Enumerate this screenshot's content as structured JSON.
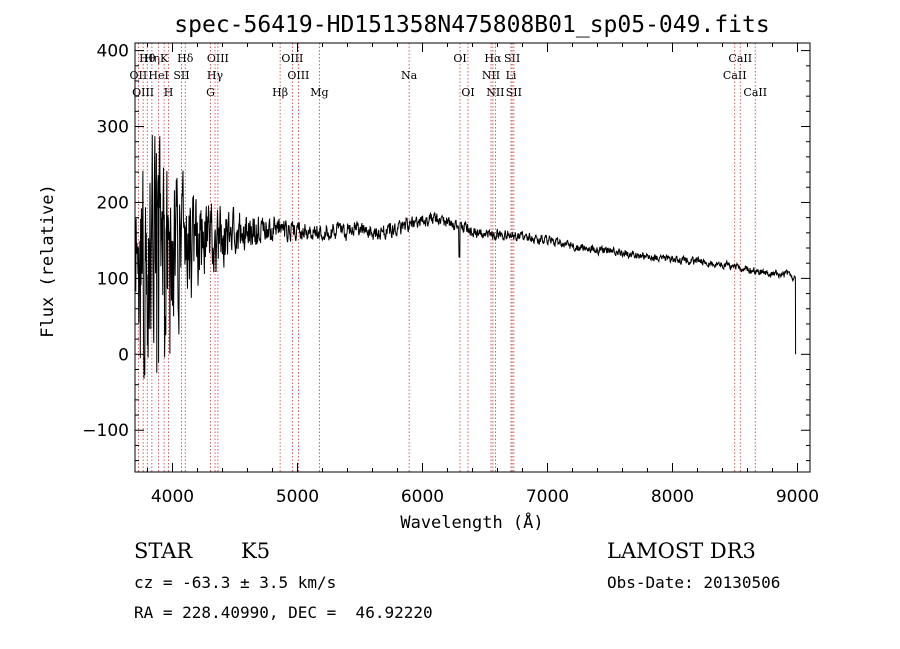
{
  "chart_data": {
    "type": "line",
    "title": "spec-56419-HD151358N475808B01_sp05-049.fits",
    "xlabel": "Wavelength (Å)",
    "ylabel": "Flux (relative)",
    "xlim": [
      3700,
      9100
    ],
    "ylim": [
      -155,
      410
    ],
    "xticks": [
      4000,
      5000,
      6000,
      7000,
      8000,
      9000
    ],
    "yticks": [
      -100,
      0,
      100,
      200,
      300,
      400
    ],
    "series": [
      {
        "name": "spectrum",
        "anchors_x": [
          3700,
          3760,
          3850,
          3950,
          4050,
          4150,
          4300,
          4500,
          4700,
          4900,
          5100,
          5300,
          5500,
          5700,
          5850,
          6000,
          6100,
          6200,
          6300,
          6400,
          6500,
          6600,
          6700,
          6800,
          7000,
          7200,
          7400,
          7600,
          7800,
          8000,
          8200,
          8400,
          8500,
          8600,
          8700,
          8800,
          8950,
          8980
        ],
        "anchors_y": [
          50,
          130,
          160,
          150,
          135,
          140,
          150,
          160,
          165,
          165,
          160,
          162,
          165,
          160,
          168,
          178,
          178,
          172,
          168,
          162,
          160,
          158,
          157,
          155,
          150,
          142,
          138,
          133,
          128,
          125,
          122,
          118,
          115,
          112,
          108,
          106,
          105,
          100
        ],
        "noise_amp_x": [
          3700,
          3900,
          4100,
          4300,
          4500,
          4800,
          5000,
          6000,
          7000,
          9000
        ],
        "noise_amp_y": [
          140,
          110,
          70,
          45,
          25,
          15,
          11,
          8,
          5,
          4
        ],
        "end_drop": {
          "x": 8985,
          "y": 0
        }
      }
    ],
    "spectral_lines": [
      {
        "label": "Hθ",
        "x": 3798,
        "row": 0
      },
      {
        "label": "Hη",
        "x": 3835,
        "row": 0
      },
      {
        "label": "K",
        "x": 3933,
        "row": 0
      },
      {
        "label": "Hδ",
        "x": 4102,
        "row": 0
      },
      {
        "label": "OIII",
        "x": 4363,
        "row": 0
      },
      {
        "label": "OIII",
        "x": 4959,
        "row": 0
      },
      {
        "label": "OI",
        "x": 6300,
        "row": 0
      },
      {
        "label": "Hα",
        "x": 6563,
        "row": 0
      },
      {
        "label": "SII",
        "x": 6717,
        "row": 0
      },
      {
        "label": "CaII",
        "x": 8542,
        "row": 0
      },
      {
        "label": "OII",
        "x": 3727,
        "row": 1
      },
      {
        "label": "HeI",
        "x": 3889,
        "row": 1
      },
      {
        "label": "SII",
        "x": 4072,
        "row": 1
      },
      {
        "label": "Hγ",
        "x": 4340,
        "row": 1
      },
      {
        "label": "OIII",
        "x": 5007,
        "row": 1
      },
      {
        "label": "Na",
        "x": 5893,
        "row": 1
      },
      {
        "label": "NII",
        "x": 6548,
        "row": 1
      },
      {
        "label": "Li",
        "x": 6708,
        "row": 1
      },
      {
        "label": "CaII",
        "x": 8498,
        "row": 1
      },
      {
        "label": "OIII",
        "x": 3765,
        "row": 2
      },
      {
        "label": "H",
        "x": 3968,
        "row": 2
      },
      {
        "label": "G",
        "x": 4304,
        "row": 2
      },
      {
        "label": "Hβ",
        "x": 4861,
        "row": 2
      },
      {
        "label": "Mg",
        "x": 5175,
        "row": 2
      },
      {
        "label": "OI",
        "x": 6364,
        "row": 2
      },
      {
        "label": "NII",
        "x": 6583,
        "row": 2
      },
      {
        "label": "SII",
        "x": 6731,
        "row": 2
      },
      {
        "label": "CaII",
        "x": 8662,
        "row": 2
      }
    ]
  },
  "info": {
    "class_label": "STAR",
    "subclass": "K5",
    "survey": "LAMOST DR3",
    "cz": "cz = -63.3 ± 3.5 km/s",
    "obs_date": "Obs-Date: 20130506",
    "coords": "RA = 228.40990, DEC =  46.92220"
  }
}
